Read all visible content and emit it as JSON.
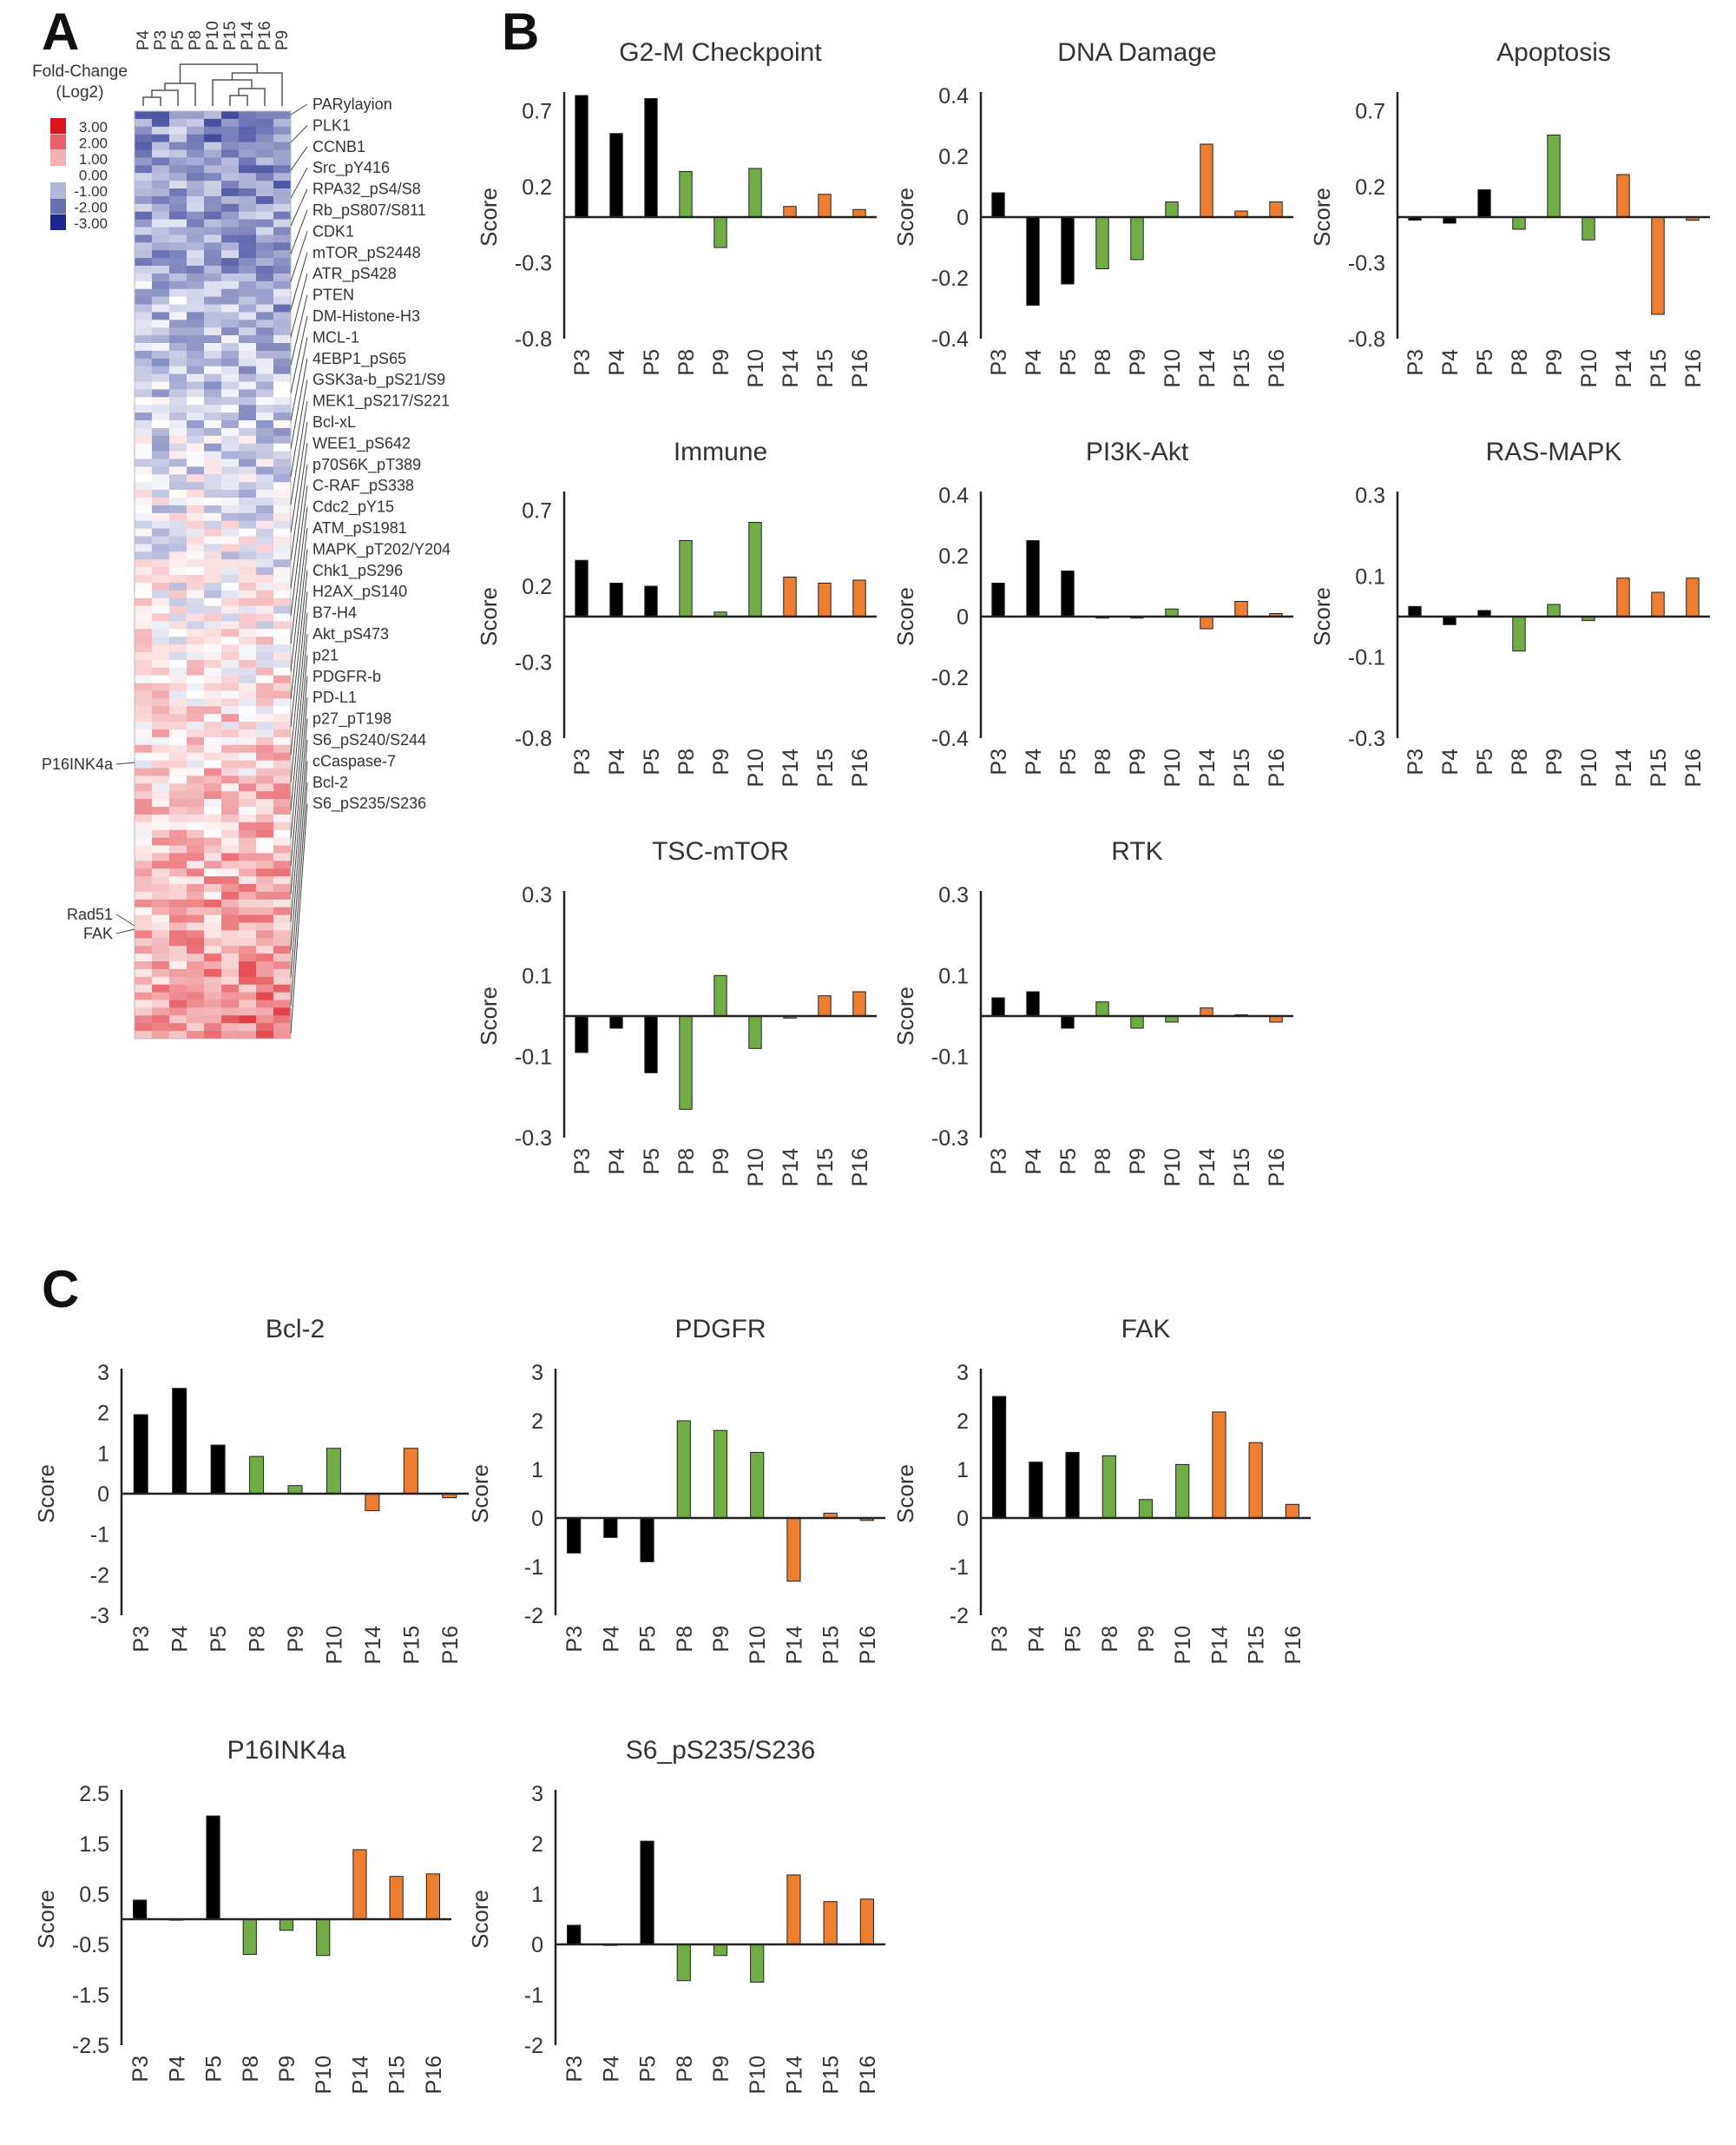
{
  "panels": {
    "a": "A",
    "b": "B",
    "c": "C"
  },
  "colors": {
    "black": "#000000",
    "green": "#70ad47",
    "orange": "#ed7d31"
  },
  "heatmap": {
    "legend_title": "Fold-Change",
    "legend_subtitle": "(Log2)",
    "legend_values": [
      "3.00",
      "2.00",
      "1.00",
      "0.00",
      "-1.00",
      "-2.00",
      "-3.00"
    ],
    "columns": [
      "P4",
      "P3",
      "P5",
      "P8",
      "P10",
      "P15",
      "P14",
      "P16",
      "P9"
    ],
    "right_labels": [
      "PARylayion",
      "PLK1",
      "CCNB1",
      "Src_pY416",
      "RPA32_pS4/S8",
      "Rb_pS807/S811",
      "CDK1",
      "mTOR_pS2448",
      "ATR_pS428",
      "PTEN",
      "DM-Histone-H3",
      "MCL-1",
      "4EBP1_pS65",
      "GSK3a-b_pS21/S9",
      "MEK1_pS217/S221",
      "Bcl-xL",
      "WEE1_pS642",
      "p70S6K_pT389",
      "C-RAF_pS338",
      "Cdc2_pY15",
      "ATM_pS1981",
      "MAPK_pT202/Y204",
      "Chk1_pS296",
      "H2AX_pS140",
      "B7-H4",
      "Akt_pS473",
      "p21",
      "PDGFR-b",
      "PD-L1",
      "p27_pT198",
      "S6_pS240/S244",
      "cCaspase-7",
      "Bcl-2",
      "S6_pS235/S236"
    ],
    "left_labels": [
      "P16INK4a",
      "Rad51",
      "FAK"
    ]
  },
  "chart_data": [
    {
      "id": "g2m",
      "type": "bar",
      "title": "G2-M Checkpoint",
      "ylabel": "Score",
      "categories": [
        "P3",
        "P4",
        "P5",
        "P8",
        "P9",
        "P10",
        "P14",
        "P15",
        "P16"
      ],
      "values": [
        0.8,
        0.55,
        0.78,
        0.3,
        -0.2,
        0.32,
        0.07,
        0.15,
        0.05
      ],
      "groups": [
        "black",
        "black",
        "black",
        "green",
        "green",
        "green",
        "orange",
        "orange",
        "orange"
      ],
      "ylim": [
        -0.8,
        0.8
      ],
      "yticks": [
        0.7,
        0.2,
        -0.3,
        -0.8
      ],
      "ytick_labels": [
        "0.7",
        "0.2",
        "-0.3",
        "-0.8"
      ]
    },
    {
      "id": "dna",
      "type": "bar",
      "title": "DNA Damage",
      "ylabel": "Score",
      "categories": [
        "P3",
        "P4",
        "P5",
        "P8",
        "P9",
        "P10",
        "P14",
        "P15",
        "P16"
      ],
      "values": [
        0.08,
        -0.29,
        -0.22,
        -0.17,
        -0.14,
        0.05,
        0.24,
        0.02,
        0.05
      ],
      "groups": [
        "black",
        "black",
        "black",
        "green",
        "green",
        "green",
        "orange",
        "orange",
        "orange"
      ],
      "ylim": [
        -0.4,
        0.4
      ],
      "yticks": [
        0.4,
        0.2,
        0,
        -0.2,
        -0.4
      ],
      "ytick_labels": [
        "0.4",
        "0.2",
        "0",
        "-0.2",
        "-0.4"
      ]
    },
    {
      "id": "apoptosis",
      "type": "bar",
      "title": "Apoptosis",
      "ylabel": "Score",
      "categories": [
        "P3",
        "P4",
        "P5",
        "P8",
        "P9",
        "P10",
        "P14",
        "P15",
        "P16"
      ],
      "values": [
        -0.02,
        -0.04,
        0.18,
        -0.08,
        0.54,
        -0.15,
        0.28,
        -0.64,
        -0.02
      ],
      "groups": [
        "black",
        "black",
        "black",
        "green",
        "green",
        "green",
        "orange",
        "orange",
        "orange"
      ],
      "ylim": [
        -0.8,
        0.8
      ],
      "yticks": [
        0.7,
        0.2,
        -0.3,
        -0.8
      ],
      "ytick_labels": [
        "0.7",
        "0.2",
        "-0.3",
        "-0.8"
      ]
    },
    {
      "id": "immune",
      "type": "bar",
      "title": "Immune",
      "ylabel": "Score",
      "categories": [
        "P3",
        "P4",
        "P5",
        "P8",
        "P9",
        "P10",
        "P14",
        "P15",
        "P16"
      ],
      "values": [
        0.37,
        0.22,
        0.2,
        0.5,
        0.03,
        0.62,
        0.26,
        0.22,
        0.24
      ],
      "groups": [
        "black",
        "black",
        "black",
        "green",
        "green",
        "green",
        "orange",
        "orange",
        "orange"
      ],
      "ylim": [
        -0.8,
        0.8
      ],
      "yticks": [
        0.7,
        0.2,
        -0.3,
        -0.8
      ],
      "ytick_labels": [
        "0.7",
        "0.2",
        "-0.3",
        "-0.8"
      ]
    },
    {
      "id": "pi3k",
      "type": "bar",
      "title": "PI3K-Akt",
      "ylabel": "Score",
      "categories": [
        "P3",
        "P4",
        "P5",
        "P8",
        "P9",
        "P10",
        "P14",
        "P15",
        "P16"
      ],
      "values": [
        0.11,
        0.25,
        0.15,
        -0.005,
        -0.005,
        0.025,
        -0.04,
        0.05,
        0.01
      ],
      "groups": [
        "black",
        "black",
        "black",
        "green",
        "green",
        "green",
        "orange",
        "orange",
        "orange"
      ],
      "ylim": [
        -0.4,
        0.4
      ],
      "yticks": [
        0.4,
        0.2,
        0,
        -0.2,
        -0.4
      ],
      "ytick_labels": [
        "0.4",
        "0.2",
        "0",
        "-0.2",
        "-0.4"
      ]
    },
    {
      "id": "rasmapk",
      "type": "bar",
      "title": "RAS-MAPK",
      "ylabel": "Score",
      "categories": [
        "P3",
        "P4",
        "P5",
        "P8",
        "P9",
        "P10",
        "P14",
        "P15",
        "P16"
      ],
      "values": [
        0.025,
        -0.02,
        0.015,
        -0.085,
        0.03,
        -0.01,
        0.095,
        0.06,
        0.095
      ],
      "groups": [
        "black",
        "black",
        "black",
        "green",
        "green",
        "green",
        "orange",
        "orange",
        "orange"
      ],
      "ylim": [
        -0.3,
        0.3
      ],
      "yticks": [
        0.3,
        0.1,
        -0.1,
        -0.3
      ],
      "ytick_labels": [
        "0.3",
        "0.1",
        "-0.1",
        "-0.3"
      ]
    },
    {
      "id": "tscmtor",
      "type": "bar",
      "title": "TSC-mTOR",
      "ylabel": "Score",
      "categories": [
        "P3",
        "P4",
        "P5",
        "P8",
        "P9",
        "P10",
        "P14",
        "P15",
        "P16"
      ],
      "values": [
        -0.09,
        -0.03,
        -0.14,
        -0.23,
        0.1,
        -0.08,
        -0.005,
        0.05,
        0.06
      ],
      "groups": [
        "black",
        "black",
        "black",
        "green",
        "green",
        "green",
        "orange",
        "orange",
        "orange"
      ],
      "ylim": [
        -0.3,
        0.3
      ],
      "yticks": [
        0.3,
        0.1,
        -0.1,
        -0.3
      ],
      "ytick_labels": [
        "0.3",
        "0.1",
        "-0.1",
        "-0.3"
      ]
    },
    {
      "id": "rtk",
      "type": "bar",
      "title": "RTK",
      "ylabel": "Score",
      "categories": [
        "P3",
        "P4",
        "P5",
        "P8",
        "P9",
        "P10",
        "P14",
        "P15",
        "P16"
      ],
      "values": [
        0.045,
        0.06,
        -0.03,
        0.035,
        -0.03,
        -0.015,
        0.02,
        0.003,
        -0.015
      ],
      "groups": [
        "black",
        "black",
        "black",
        "green",
        "green",
        "green",
        "orange",
        "orange",
        "orange"
      ],
      "ylim": [
        -0.3,
        0.3
      ],
      "yticks": [
        0.3,
        0.1,
        -0.1,
        -0.3
      ],
      "ytick_labels": [
        "0.3",
        "0.1",
        "-0.1",
        "-0.3"
      ]
    },
    {
      "id": "bcl2",
      "type": "bar",
      "title": "Bcl-2",
      "ylabel": "Score",
      "categories": [
        "P3",
        "P4",
        "P5",
        "P8",
        "P9",
        "P10",
        "P14",
        "P15",
        "P16"
      ],
      "values": [
        1.95,
        2.6,
        1.2,
        0.92,
        0.2,
        1.12,
        -0.42,
        1.12,
        -0.1
      ],
      "groups": [
        "black",
        "black",
        "black",
        "green",
        "green",
        "green",
        "orange",
        "orange",
        "orange"
      ],
      "ylim": [
        -3,
        3
      ],
      "yticks": [
        3,
        2,
        1,
        0,
        -1,
        -2,
        -3
      ],
      "ytick_labels": [
        "3",
        "2",
        "1",
        "0",
        "-1",
        "-2",
        "-3"
      ]
    },
    {
      "id": "pdgfr",
      "type": "bar",
      "title": "PDGFR",
      "ylabel": "Score",
      "categories": [
        "P3",
        "P4",
        "P5",
        "P8",
        "P9",
        "P10",
        "P14",
        "P15",
        "P16"
      ],
      "values": [
        -0.72,
        -0.4,
        -0.9,
        2.0,
        1.8,
        1.35,
        -1.3,
        0.1,
        -0.05
      ],
      "groups": [
        "black",
        "black",
        "black",
        "green",
        "green",
        "green",
        "orange",
        "orange",
        "orange"
      ],
      "ylim": [
        -2,
        3
      ],
      "yticks": [
        3,
        2,
        1,
        0,
        -1,
        -2
      ],
      "ytick_labels": [
        "3",
        "2",
        "1",
        "0",
        "-1",
        "-2"
      ]
    },
    {
      "id": "fak",
      "type": "bar",
      "title": "FAK",
      "ylabel": "Score",
      "categories": [
        "P3",
        "P4",
        "P5",
        "P8",
        "P9",
        "P10",
        "P14",
        "P15",
        "P16"
      ],
      "values": [
        2.5,
        1.15,
        1.35,
        1.28,
        0.38,
        1.1,
        2.18,
        1.55,
        0.28
      ],
      "groups": [
        "black",
        "black",
        "black",
        "green",
        "green",
        "green",
        "orange",
        "orange",
        "orange"
      ],
      "ylim": [
        -2,
        3
      ],
      "yticks": [
        3,
        2,
        1,
        0,
        -1,
        -2
      ],
      "ytick_labels": [
        "3",
        "2",
        "1",
        "0",
        "-1",
        "-2"
      ]
    },
    {
      "id": "p16",
      "type": "bar",
      "title": "P16INK4a",
      "ylabel": "Score",
      "categories": [
        "P3",
        "P4",
        "P5",
        "P8",
        "P9",
        "P10",
        "P14",
        "P15",
        "P16"
      ],
      "values": [
        0.38,
        -0.02,
        2.05,
        -0.7,
        -0.22,
        -0.72,
        1.38,
        0.85,
        0.9
      ],
      "groups": [
        "black",
        "black",
        "black",
        "green",
        "green",
        "green",
        "orange",
        "orange",
        "orange"
      ],
      "ylim": [
        -2.5,
        2.5
      ],
      "yticks": [
        2.5,
        1.5,
        0.5,
        -0.5,
        -1.5,
        -2.5
      ],
      "ytick_labels": [
        "2.5",
        "1.5",
        "0.5",
        "-0.5",
        "-1.5",
        "-2.5"
      ]
    },
    {
      "id": "s6",
      "type": "bar",
      "title": "S6_pS235/S236",
      "ylabel": "Score",
      "categories": [
        "P3",
        "P4",
        "P5",
        "P8",
        "P9",
        "P10",
        "P14",
        "P15",
        "P16"
      ],
      "values": [
        0.38,
        -0.02,
        2.05,
        -0.72,
        -0.22,
        -0.75,
        1.38,
        0.85,
        0.9
      ],
      "groups": [
        "black",
        "black",
        "black",
        "green",
        "green",
        "green",
        "orange",
        "orange",
        "orange"
      ],
      "ylim": [
        -2,
        3
      ],
      "yticks": [
        3,
        2,
        1,
        0,
        -1,
        -2
      ],
      "ytick_labels": [
        "3",
        "2",
        "1",
        "0",
        "-1",
        "-2"
      ]
    }
  ]
}
